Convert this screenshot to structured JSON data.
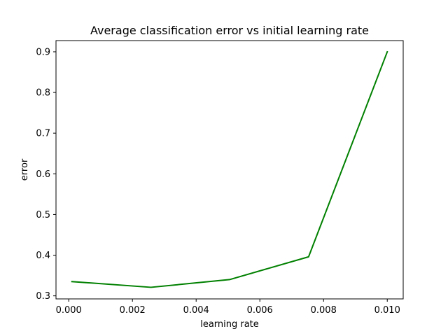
{
  "chart_data": {
    "type": "line",
    "title": "Average classification error vs initial learning rate",
    "xlabel": "learning rate",
    "ylabel": "error",
    "xlim": [
      -0.0004,
      0.0105
    ],
    "ylim": [
      0.2925,
      0.9275
    ],
    "x_ticks": [
      0.0,
      0.002,
      0.004,
      0.006,
      0.008,
      0.01
    ],
    "x_tick_labels": [
      "0.000",
      "0.002",
      "0.004",
      "0.006",
      "0.008",
      "0.010"
    ],
    "y_ticks": [
      0.3,
      0.4,
      0.5,
      0.6,
      0.7,
      0.8,
      0.9
    ],
    "y_tick_labels": [
      "0.3",
      "0.4",
      "0.5",
      "0.6",
      "0.7",
      "0.8",
      "0.9"
    ],
    "grid": false,
    "legend": "none",
    "series": [
      {
        "color": "#008000",
        "x": [
          0.0001,
          0.00258,
          0.00505,
          0.00753,
          0.01
        ],
        "y": [
          0.335,
          0.321,
          0.34,
          0.396,
          0.9
        ]
      }
    ]
  }
}
